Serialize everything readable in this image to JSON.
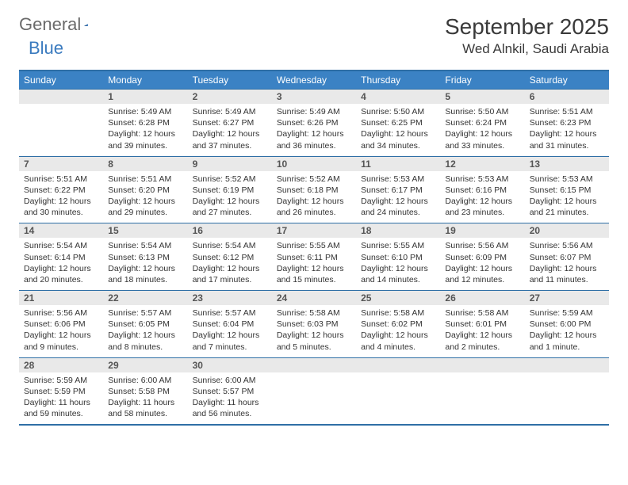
{
  "logo": {
    "word1": "General",
    "word2": "Blue"
  },
  "header": {
    "month": "September 2025",
    "location": "Wed Alnkil, Saudi Arabia"
  },
  "colors": {
    "accent": "#3b82c4",
    "rule": "#2f6fa6",
    "daybg": "#e9e9e9"
  },
  "dayNames": [
    "Sunday",
    "Monday",
    "Tuesday",
    "Wednesday",
    "Thursday",
    "Friday",
    "Saturday"
  ],
  "weeks": [
    [
      {
        "n": "",
        "sunrise": "",
        "sunset": "",
        "daylight": ""
      },
      {
        "n": "1",
        "sunrise": "Sunrise: 5:49 AM",
        "sunset": "Sunset: 6:28 PM",
        "daylight": "Daylight: 12 hours and 39 minutes."
      },
      {
        "n": "2",
        "sunrise": "Sunrise: 5:49 AM",
        "sunset": "Sunset: 6:27 PM",
        "daylight": "Daylight: 12 hours and 37 minutes."
      },
      {
        "n": "3",
        "sunrise": "Sunrise: 5:49 AM",
        "sunset": "Sunset: 6:26 PM",
        "daylight": "Daylight: 12 hours and 36 minutes."
      },
      {
        "n": "4",
        "sunrise": "Sunrise: 5:50 AM",
        "sunset": "Sunset: 6:25 PM",
        "daylight": "Daylight: 12 hours and 34 minutes."
      },
      {
        "n": "5",
        "sunrise": "Sunrise: 5:50 AM",
        "sunset": "Sunset: 6:24 PM",
        "daylight": "Daylight: 12 hours and 33 minutes."
      },
      {
        "n": "6",
        "sunrise": "Sunrise: 5:51 AM",
        "sunset": "Sunset: 6:23 PM",
        "daylight": "Daylight: 12 hours and 31 minutes."
      }
    ],
    [
      {
        "n": "7",
        "sunrise": "Sunrise: 5:51 AM",
        "sunset": "Sunset: 6:22 PM",
        "daylight": "Daylight: 12 hours and 30 minutes."
      },
      {
        "n": "8",
        "sunrise": "Sunrise: 5:51 AM",
        "sunset": "Sunset: 6:20 PM",
        "daylight": "Daylight: 12 hours and 29 minutes."
      },
      {
        "n": "9",
        "sunrise": "Sunrise: 5:52 AM",
        "sunset": "Sunset: 6:19 PM",
        "daylight": "Daylight: 12 hours and 27 minutes."
      },
      {
        "n": "10",
        "sunrise": "Sunrise: 5:52 AM",
        "sunset": "Sunset: 6:18 PM",
        "daylight": "Daylight: 12 hours and 26 minutes."
      },
      {
        "n": "11",
        "sunrise": "Sunrise: 5:53 AM",
        "sunset": "Sunset: 6:17 PM",
        "daylight": "Daylight: 12 hours and 24 minutes."
      },
      {
        "n": "12",
        "sunrise": "Sunrise: 5:53 AM",
        "sunset": "Sunset: 6:16 PM",
        "daylight": "Daylight: 12 hours and 23 minutes."
      },
      {
        "n": "13",
        "sunrise": "Sunrise: 5:53 AM",
        "sunset": "Sunset: 6:15 PM",
        "daylight": "Daylight: 12 hours and 21 minutes."
      }
    ],
    [
      {
        "n": "14",
        "sunrise": "Sunrise: 5:54 AM",
        "sunset": "Sunset: 6:14 PM",
        "daylight": "Daylight: 12 hours and 20 minutes."
      },
      {
        "n": "15",
        "sunrise": "Sunrise: 5:54 AM",
        "sunset": "Sunset: 6:13 PM",
        "daylight": "Daylight: 12 hours and 18 minutes."
      },
      {
        "n": "16",
        "sunrise": "Sunrise: 5:54 AM",
        "sunset": "Sunset: 6:12 PM",
        "daylight": "Daylight: 12 hours and 17 minutes."
      },
      {
        "n": "17",
        "sunrise": "Sunrise: 5:55 AM",
        "sunset": "Sunset: 6:11 PM",
        "daylight": "Daylight: 12 hours and 15 minutes."
      },
      {
        "n": "18",
        "sunrise": "Sunrise: 5:55 AM",
        "sunset": "Sunset: 6:10 PM",
        "daylight": "Daylight: 12 hours and 14 minutes."
      },
      {
        "n": "19",
        "sunrise": "Sunrise: 5:56 AM",
        "sunset": "Sunset: 6:09 PM",
        "daylight": "Daylight: 12 hours and 12 minutes."
      },
      {
        "n": "20",
        "sunrise": "Sunrise: 5:56 AM",
        "sunset": "Sunset: 6:07 PM",
        "daylight": "Daylight: 12 hours and 11 minutes."
      }
    ],
    [
      {
        "n": "21",
        "sunrise": "Sunrise: 5:56 AM",
        "sunset": "Sunset: 6:06 PM",
        "daylight": "Daylight: 12 hours and 9 minutes."
      },
      {
        "n": "22",
        "sunrise": "Sunrise: 5:57 AM",
        "sunset": "Sunset: 6:05 PM",
        "daylight": "Daylight: 12 hours and 8 minutes."
      },
      {
        "n": "23",
        "sunrise": "Sunrise: 5:57 AM",
        "sunset": "Sunset: 6:04 PM",
        "daylight": "Daylight: 12 hours and 7 minutes."
      },
      {
        "n": "24",
        "sunrise": "Sunrise: 5:58 AM",
        "sunset": "Sunset: 6:03 PM",
        "daylight": "Daylight: 12 hours and 5 minutes."
      },
      {
        "n": "25",
        "sunrise": "Sunrise: 5:58 AM",
        "sunset": "Sunset: 6:02 PM",
        "daylight": "Daylight: 12 hours and 4 minutes."
      },
      {
        "n": "26",
        "sunrise": "Sunrise: 5:58 AM",
        "sunset": "Sunset: 6:01 PM",
        "daylight": "Daylight: 12 hours and 2 minutes."
      },
      {
        "n": "27",
        "sunrise": "Sunrise: 5:59 AM",
        "sunset": "Sunset: 6:00 PM",
        "daylight": "Daylight: 12 hours and 1 minute."
      }
    ],
    [
      {
        "n": "28",
        "sunrise": "Sunrise: 5:59 AM",
        "sunset": "Sunset: 5:59 PM",
        "daylight": "Daylight: 11 hours and 59 minutes."
      },
      {
        "n": "29",
        "sunrise": "Sunrise: 6:00 AM",
        "sunset": "Sunset: 5:58 PM",
        "daylight": "Daylight: 11 hours and 58 minutes."
      },
      {
        "n": "30",
        "sunrise": "Sunrise: 6:00 AM",
        "sunset": "Sunset: 5:57 PM",
        "daylight": "Daylight: 11 hours and 56 minutes."
      },
      {
        "n": "",
        "sunrise": "",
        "sunset": "",
        "daylight": ""
      },
      {
        "n": "",
        "sunrise": "",
        "sunset": "",
        "daylight": ""
      },
      {
        "n": "",
        "sunrise": "",
        "sunset": "",
        "daylight": ""
      },
      {
        "n": "",
        "sunrise": "",
        "sunset": "",
        "daylight": ""
      }
    ]
  ]
}
